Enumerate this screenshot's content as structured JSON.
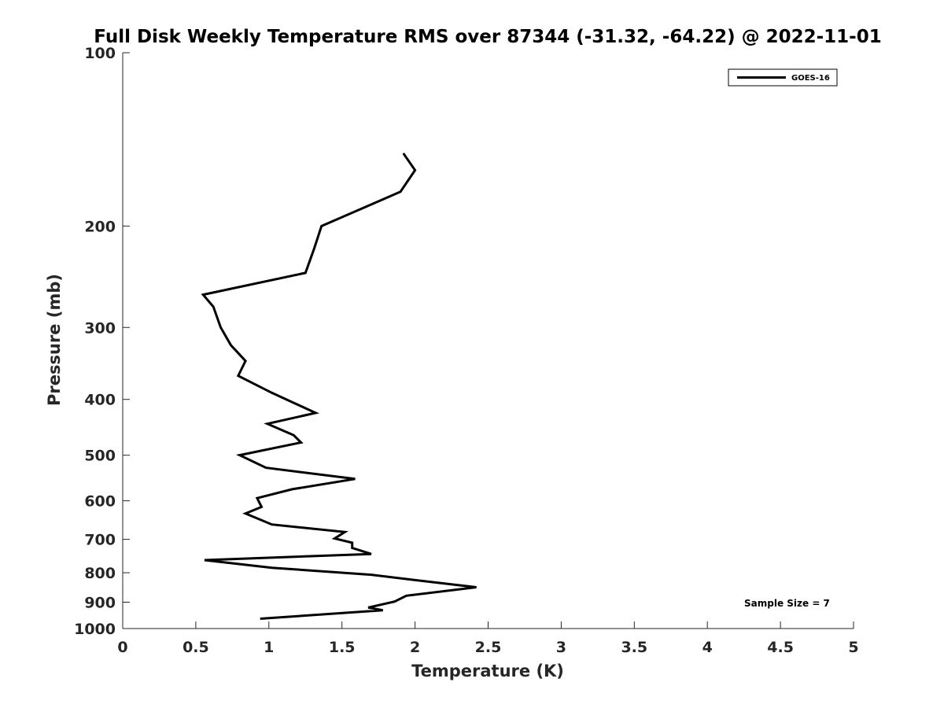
{
  "chart_data": {
    "type": "line",
    "title": "Full Disk Weekly Temperature RMS over 87344 (-31.32, -64.22) @ 2022-11-01",
    "xlabel": "Temperature (K)",
    "ylabel": "Pressure (mb)",
    "xlim": [
      0,
      5
    ],
    "ylim": [
      100,
      1000
    ],
    "y_scale": "log",
    "y_reversed": true,
    "xticks": [
      0,
      0.5,
      1,
      1.5,
      2,
      2.5,
      3,
      3.5,
      4,
      4.5,
      5
    ],
    "xtick_labels": [
      "0",
      "0.5",
      "1",
      "1.5",
      "2",
      "2.5",
      "3",
      "3.5",
      "4",
      "4.5",
      "5"
    ],
    "yticks": [
      100,
      200,
      300,
      400,
      500,
      600,
      700,
      800,
      900,
      1000
    ],
    "ytick_labels": [
      "100",
      "200",
      "300",
      "400",
      "500",
      "600",
      "700",
      "800",
      "900",
      "1000"
    ],
    "grid": false,
    "legend": {
      "position": "top-right",
      "entries": [
        "GOES-16"
      ]
    },
    "annotation": "Sample Size = 7",
    "series": [
      {
        "name": "GOES-16",
        "color": "#000000",
        "points": [
          [
            1.92,
            149.5
          ],
          [
            2.0,
            160.0
          ],
          [
            1.9,
            174.4
          ],
          [
            1.36,
            200.0
          ],
          [
            1.31,
            218.8
          ],
          [
            1.25,
            241.2
          ],
          [
            0.55,
            263.2
          ],
          [
            0.62,
            276.1
          ],
          [
            0.67,
            299.9
          ],
          [
            0.74,
            322.0
          ],
          [
            0.84,
            343.0
          ],
          [
            0.79,
            364.0
          ],
          [
            1.02,
            389.5
          ],
          [
            1.32,
            422.2
          ],
          [
            0.99,
            441.0
          ],
          [
            1.17,
            461.7
          ],
          [
            1.22,
            475.3
          ],
          [
            0.8,
            500.0
          ],
          [
            0.98,
            525.7
          ],
          [
            1.59,
            549.7
          ],
          [
            1.16,
            572.8
          ],
          [
            0.92,
            593.6
          ],
          [
            0.95,
            614.8
          ],
          [
            0.84,
            631.4
          ],
          [
            1.02,
            659.5
          ],
          [
            1.52,
            679.8
          ],
          [
            1.45,
            697.6
          ],
          [
            1.57,
            709.6
          ],
          [
            1.57,
            724.3
          ],
          [
            1.7,
            742.2
          ],
          [
            0.56,
            760.6
          ],
          [
            1.02,
            784.1
          ],
          [
            1.7,
            806.3
          ],
          [
            2.0,
            823.9
          ],
          [
            2.42,
            847.8
          ],
          [
            1.94,
            877.2
          ],
          [
            1.86,
            897.6
          ],
          [
            1.68,
            919.4
          ],
          [
            1.78,
            929.3
          ],
          [
            0.94,
            961.4
          ]
        ]
      }
    ]
  },
  "colors": {
    "line": "#000000",
    "axis": "#262626",
    "background": "#ffffff"
  }
}
